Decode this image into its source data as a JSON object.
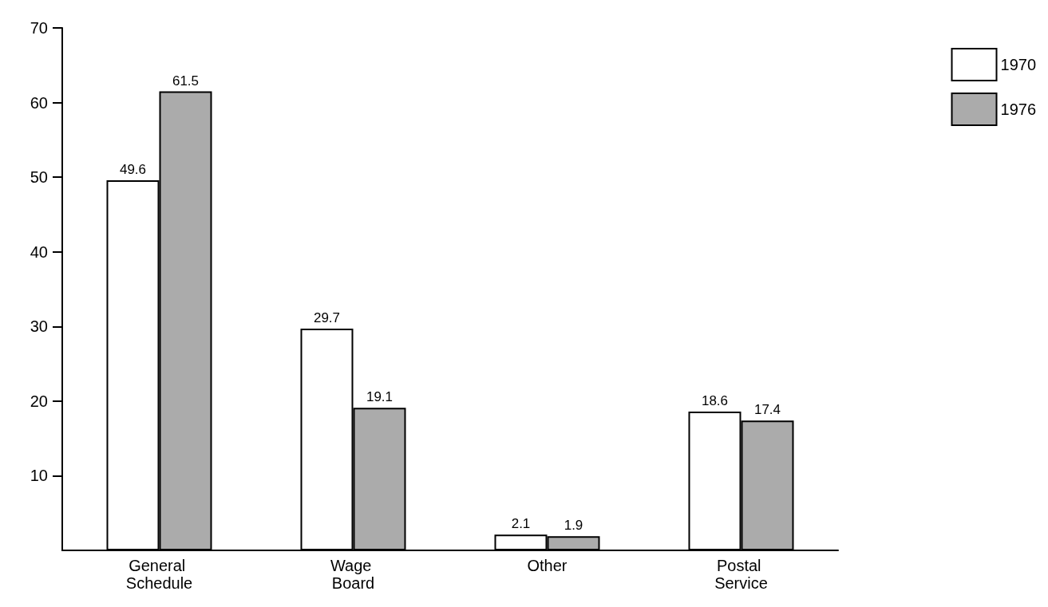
{
  "chart_data": {
    "type": "bar",
    "categories": [
      "General Schedule",
      "Wage Board",
      "Other",
      "Postal Service"
    ],
    "series": [
      {
        "name": "1970",
        "color": "#ffffff",
        "values": [
          49.6,
          29.7,
          2.1,
          18.6
        ]
      },
      {
        "name": "1976",
        "color": "#ababab",
        "values": [
          61.5,
          19.1,
          1.9,
          17.4
        ]
      }
    ],
    "ylim": [
      0,
      70
    ],
    "yticks": [
      10,
      20,
      30,
      40,
      50,
      60,
      70
    ],
    "data_labels": true,
    "legend": "top right",
    "grid": false
  }
}
